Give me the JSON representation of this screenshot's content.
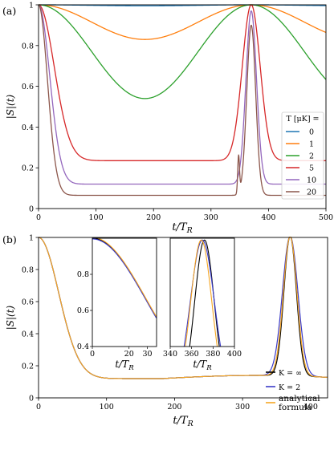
{
  "panel_labels": [
    "(a)",
    "(b)"
  ],
  "colors": {
    "T0": "#1f77b4",
    "T1": "#ff7f0e",
    "T2": "#2ca02c",
    "T5": "#d62728",
    "T10": "#9467bd",
    "T20": "#8c564b",
    "K_inf": "#000000",
    "K_2": "#3a3ac8",
    "analytical": "#f5a623"
  },
  "chart_data": [
    {
      "type": "line",
      "panel": "(a)",
      "xlabel": "t/T_R",
      "ylabel": "|S|(t)",
      "xlim": [
        0,
        500
      ],
      "ylim": [
        0,
        1.0
      ],
      "xticks": [
        0,
        100,
        200,
        300,
        400,
        500
      ],
      "yticks": [
        0.0,
        0.2,
        0.4,
        0.6,
        0.8,
        1.0
      ],
      "grid": false,
      "legend": {
        "title": "T [μK] =",
        "placement": "right",
        "entries": [
          "0",
          "1",
          "2",
          "5",
          "10",
          "20"
        ]
      },
      "revival_time": 370,
      "series": [
        {
          "name": "0",
          "minimum": 0.995,
          "shape": "flat"
        },
        {
          "name": "1",
          "minimum": 0.83,
          "shape": "bowl"
        },
        {
          "name": "2",
          "minimum": 0.54,
          "shape": "bowl"
        },
        {
          "name": "5",
          "minimum": 0.235,
          "shape": "steep",
          "revival_peak": 1.0
        },
        {
          "name": "10",
          "minimum": 0.12,
          "shape": "steep",
          "revival_peak": 0.97
        },
        {
          "name": "20",
          "minimum": 0.065,
          "shape": "steep",
          "revival_peak": 0.9,
          "pre_revival_spike": 0.28
        }
      ]
    },
    {
      "type": "line",
      "panel": "(b)",
      "xlabel": "t/T_R",
      "ylabel": "|S|(t)",
      "xlim": [
        0,
        425
      ],
      "ylim": [
        0,
        1.0
      ],
      "xticks": [
        0,
        100,
        200,
        300,
        400
      ],
      "yticks": [
        0.0,
        0.2,
        0.4,
        0.6,
        0.8,
        1.0
      ],
      "grid": false,
      "legend": {
        "placement": "bottom-right",
        "entries": [
          "K = ∞",
          "K = 2",
          "analytical formula"
        ]
      },
      "curve": {
        "minimum": 0.12,
        "minimum_at": 185,
        "revival_at": 370,
        "revival_peak": 0.99
      },
      "series": [
        {
          "name": "K = ∞",
          "revival_width": 13
        },
        {
          "name": "K = 2",
          "revival_width": 16
        },
        {
          "name": "analytical formula",
          "revival_width": 14
        }
      ],
      "insets": [
        {
          "xlim": [
            0,
            35
          ],
          "ylim": [
            0.4,
            1.0
          ],
          "xticks": [
            0,
            20,
            30
          ],
          "yticks": [
            0.4,
            0.6,
            0.8
          ],
          "xlabel": "t/T_R"
        },
        {
          "xlim": [
            340,
            400
          ],
          "ylim": [
            0.4,
            1.0
          ],
          "xticks": [
            340,
            360,
            380,
            400
          ],
          "xlabel": "t/T_R"
        }
      ]
    }
  ]
}
